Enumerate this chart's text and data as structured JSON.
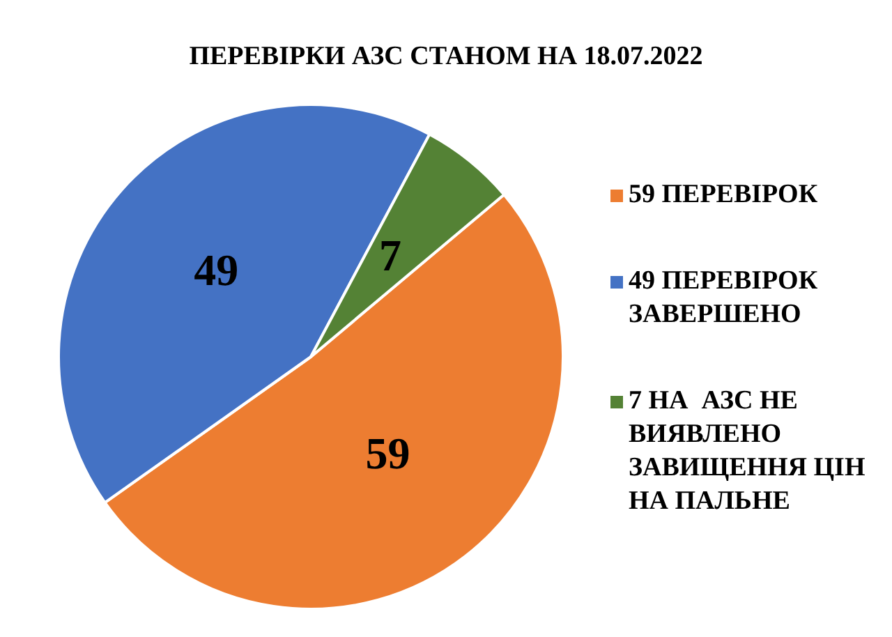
{
  "chart_data": {
    "type": "pie",
    "title": "ПЕРЕВІРКИ АЗС СТАНОМ НА 18.07.2022",
    "categories": [
      "59 ПЕРЕВІРОК",
      "49 ПЕРЕВІРОК ЗАВЕРШЕНО",
      "7 НА  АЗС НЕ ВИЯВЛЕНО ЗАВИЩЕННЯ ЦІН НА ПАЛЬНЕ"
    ],
    "values": [
      59,
      49,
      7
    ],
    "colors": [
      "#ed7d31",
      "#4472c4",
      "#548235"
    ],
    "data_labels": true,
    "legend": "right"
  }
}
